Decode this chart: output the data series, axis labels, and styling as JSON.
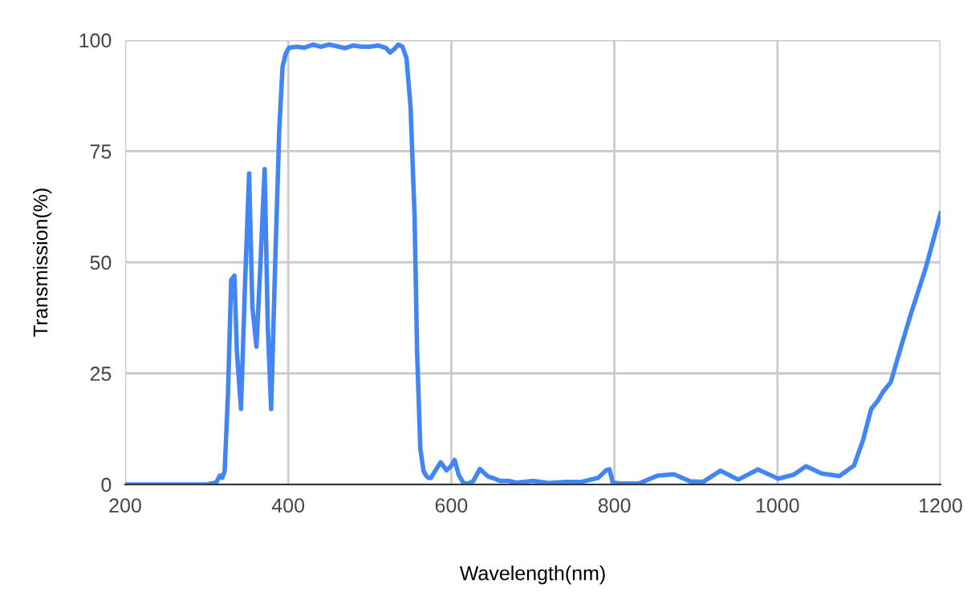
{
  "chart_data": {
    "type": "line",
    "xlabel": "Wavelength(nm)",
    "ylabel": "Transmission(%)",
    "series": [
      {
        "color": "#4285f4",
        "x": [
          200,
          250,
          300,
          308,
          312,
          316,
          319,
          322,
          326,
          330,
          334,
          337,
          342,
          347,
          352,
          356,
          361,
          366,
          371,
          375,
          379,
          384,
          389,
          393,
          397,
          401,
          410,
          420,
          430,
          440,
          450,
          460,
          470,
          480,
          490,
          500,
          510,
          520,
          525,
          530,
          535,
          540,
          545,
          550,
          555,
          558,
          562,
          566,
          569,
          572,
          575,
          580,
          587,
          594,
          599,
          604,
          609,
          615,
          621,
          627,
          635,
          645,
          652,
          660,
          670,
          680,
          700,
          720,
          740,
          760,
          780,
          790,
          794,
          798,
          810,
          830,
          853,
          873,
          893,
          909,
          930,
          952,
          976,
          1001,
          1020,
          1035,
          1054,
          1076,
          1094,
          1105,
          1115,
          1123,
          1130,
          1139,
          1150,
          1163,
          1182,
          1200
        ],
        "values": [
          0,
          0,
          0,
          0.3,
          0.5,
          2,
          1.5,
          3,
          20,
          46,
          47,
          30,
          17,
          45,
          70,
          40,
          31,
          50,
          71,
          35,
          17,
          50,
          80,
          94,
          97,
          98.3,
          98.5,
          98.3,
          99,
          98.5,
          99,
          98.6,
          98.2,
          98.8,
          98.5,
          98.5,
          98.8,
          98.2,
          97.2,
          98,
          99,
          98.5,
          96,
          85,
          60,
          30,
          8,
          3,
          2,
          1.5,
          1.5,
          3,
          5,
          3.2,
          4,
          5.5,
          2.2,
          0.3,
          0.2,
          0.8,
          3.5,
          1.8,
          1.4,
          0.8,
          0.8,
          0.4,
          0.8,
          0.3,
          0.6,
          0.6,
          1.5,
          3.2,
          3.4,
          0.4,
          0.2,
          0.2,
          2,
          2.3,
          0.7,
          0.6,
          3.1,
          1.1,
          3.4,
          1.3,
          2.2,
          4.1,
          2.5,
          1.9,
          4.3,
          10,
          17,
          18.8,
          21,
          23,
          30,
          38,
          48.8,
          61
        ]
      }
    ],
    "xlim": [
      200,
      1200
    ],
    "ylim": [
      0,
      100
    ],
    "xticks": [
      200,
      400,
      600,
      800,
      1000,
      1200
    ],
    "yticks": [
      0,
      25,
      50,
      75,
      100
    ],
    "grid": true,
    "marker": "none",
    "line_style": "solid"
  }
}
